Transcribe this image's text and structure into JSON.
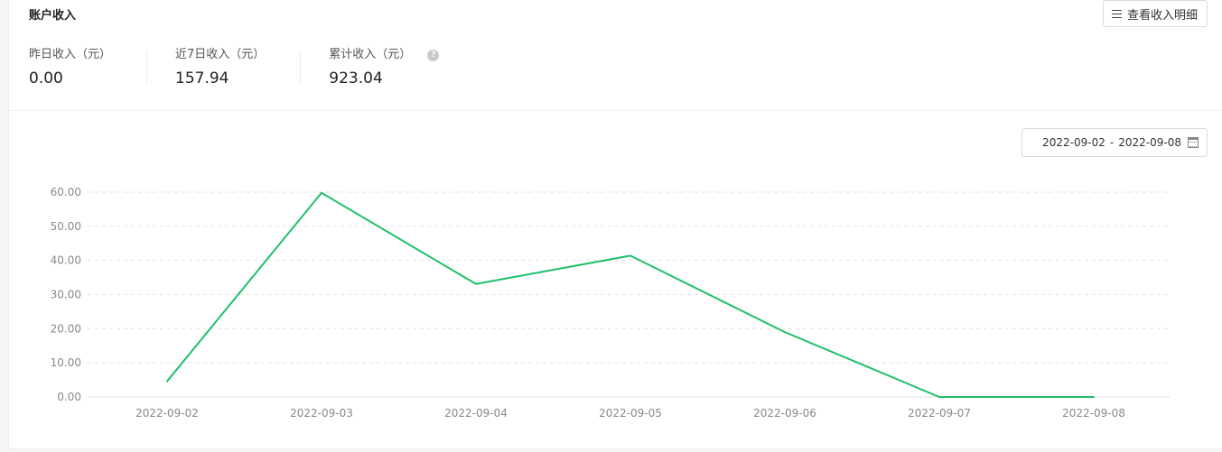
{
  "header": {
    "title": "账户收入",
    "detail_button_label": "查看收入明细"
  },
  "stats": [
    {
      "label": "昨日收入（元）",
      "value": "0.00"
    },
    {
      "label": "近7日收入（元）",
      "value": "157.94"
    },
    {
      "label": "累计收入（元）",
      "value": "923.04"
    }
  ],
  "help_icon_glyph": "?",
  "date_range": {
    "start": "2022-09-02",
    "separator": "-",
    "end": "2022-09-08"
  },
  "colors": {
    "line": "#1fbf6a",
    "grid": "#e3e3e3",
    "axis_text": "#888888"
  },
  "chart_data": {
    "type": "line",
    "categories": [
      "2022-09-02",
      "2022-09-03",
      "2022-09-04",
      "2022-09-05",
      "2022-09-06",
      "2022-09-07",
      "2022-09-08"
    ],
    "values": [
      4.6,
      59.8,
      33.1,
      41.4,
      19.0,
      0.0,
      0.0
    ],
    "y_ticks": [
      "0.00",
      "10.00",
      "20.00",
      "30.00",
      "40.00",
      "50.00",
      "60.00"
    ],
    "ylim": [
      0,
      60
    ],
    "grid": true
  }
}
